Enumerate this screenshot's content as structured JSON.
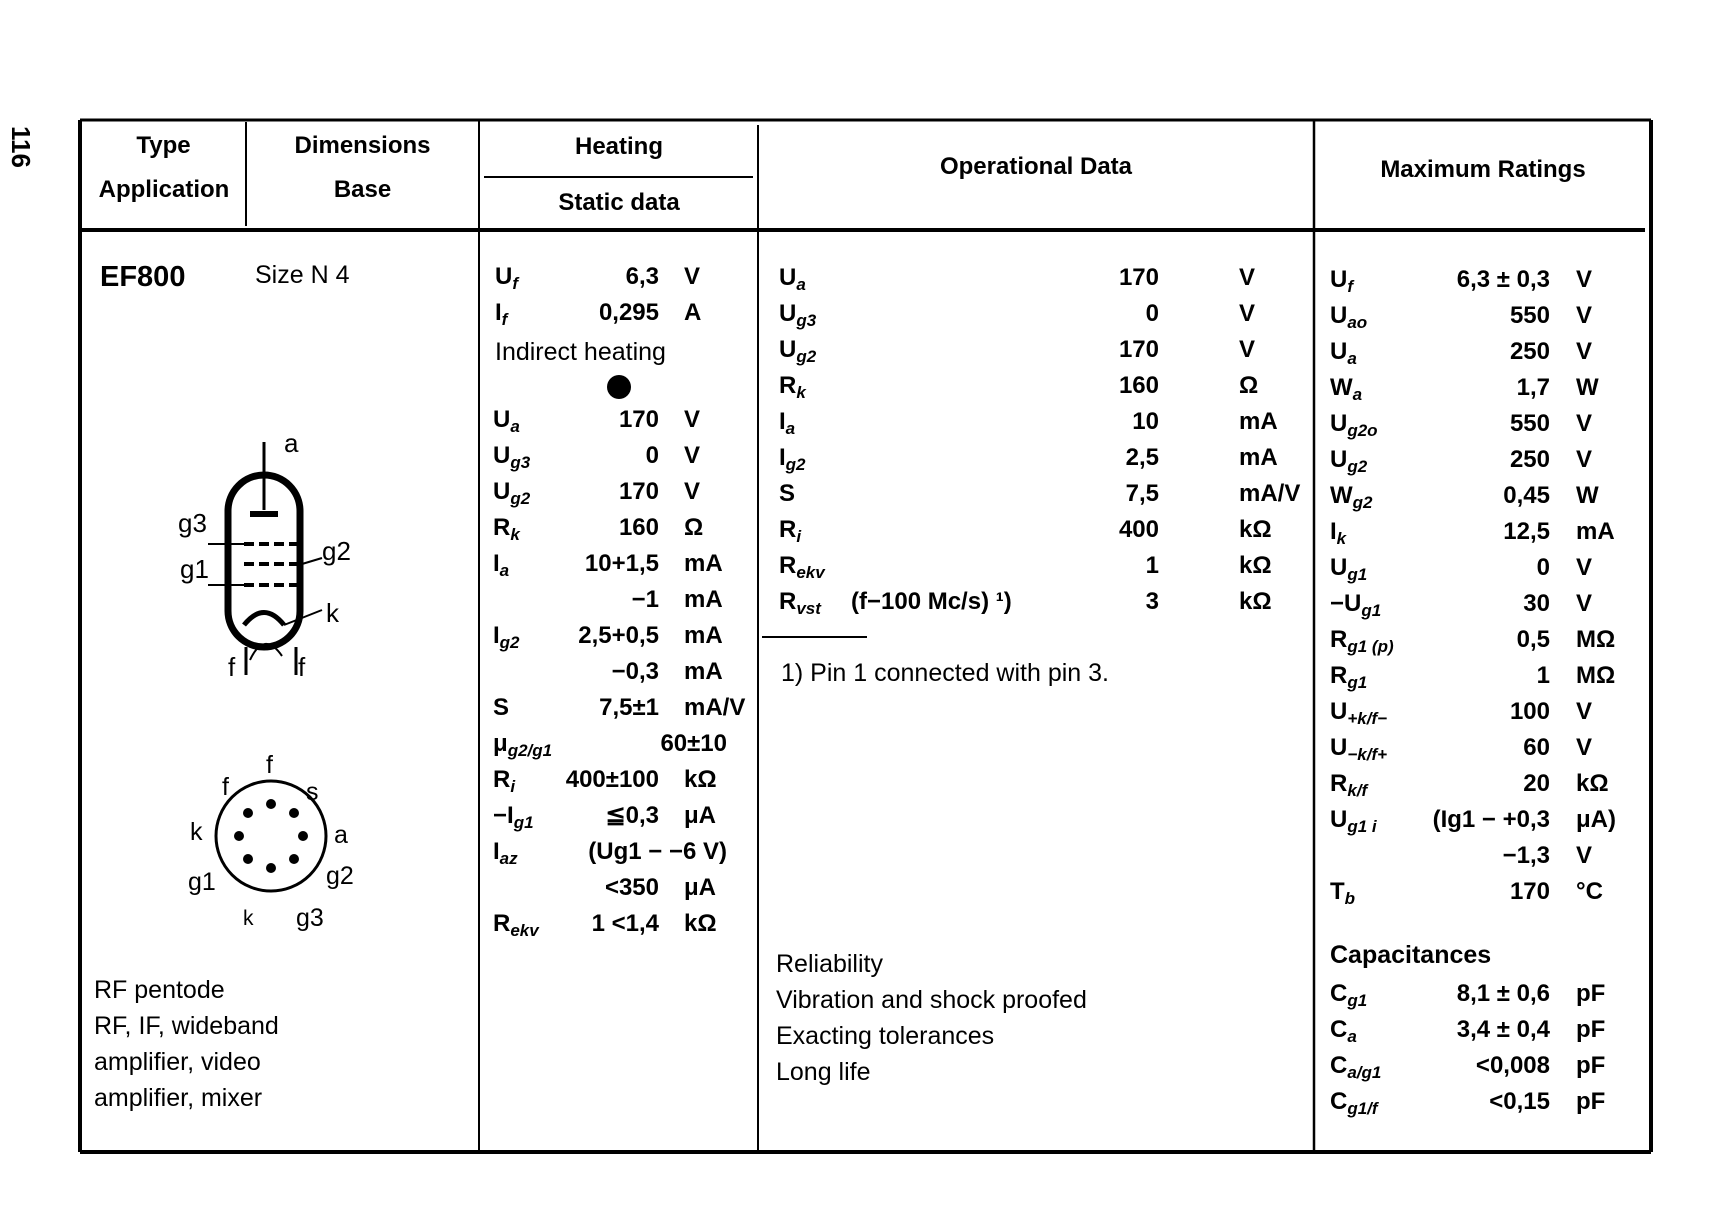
{
  "page_number": "116",
  "headers": {
    "type": "Type",
    "application": "Application",
    "dimensions": "Dimensions",
    "base": "Base",
    "heating": "Heating",
    "static_data": "Static data",
    "operational": "Operational Data",
    "maximum": "Maximum Ratings"
  },
  "tube": {
    "type": "EF800",
    "size": "Size N 4",
    "application": [
      "RF pentode",
      "RF, IF, wideband",
      "amplifier, video",
      "amplifier, mixer"
    ],
    "symbol_labels": {
      "a": "a",
      "g3": "g3",
      "g2": "g2",
      "g1": "g1",
      "k": "k",
      "f1": "f",
      "f2": "f"
    },
    "base_labels": {
      "f1": "f",
      "f2": "f",
      "s": "s",
      "k1": "k",
      "a": "a",
      "g1": "g1",
      "g2": "g2",
      "k2": "k",
      "g3": "g3"
    }
  },
  "heating": {
    "rows": [
      {
        "sym": "U",
        "sub": "f",
        "val": "6,3",
        "unit": "V"
      },
      {
        "sym": "I",
        "sub": "f",
        "val": "0,295",
        "unit": "A"
      }
    ],
    "note": "Indirect heating",
    "dot_icon": "filled-circle"
  },
  "static": {
    "rows": [
      {
        "sym": "U",
        "sub": "a",
        "val": "170",
        "unit": "V"
      },
      {
        "sym": "U",
        "sub": "g3",
        "val": "0",
        "unit": "V"
      },
      {
        "sym": "U",
        "sub": "g2",
        "val": "170",
        "unit": "V"
      },
      {
        "sym": "R",
        "sub": "k",
        "val": "160",
        "unit": "Ω"
      },
      {
        "sym": "I",
        "sub": "a",
        "val": "10+1,5",
        "unit": "mA"
      },
      {
        "sym": "",
        "sub": "",
        "val": "−1",
        "unit": "mA"
      },
      {
        "sym": "I",
        "sub": "g2",
        "val": "2,5+0,5",
        "unit": "mA"
      },
      {
        "sym": "",
        "sub": "",
        "val": "−0,3",
        "unit": "mA"
      },
      {
        "sym": "S",
        "sub": "",
        "val": "7,5±1",
        "unit": "mA/V"
      },
      {
        "sym": "μ",
        "sub": "g2/g1",
        "val": "60±10",
        "unit": ""
      },
      {
        "sym": "R",
        "sub": "i",
        "val": "400±100",
        "unit": "kΩ"
      },
      {
        "sym": "−I",
        "sub": "g1",
        "val": "≦0,3",
        "unit": "μA"
      },
      {
        "sym": "I",
        "sub": "az",
        "val": "(Ug1 − −6 V)",
        "unit": ""
      },
      {
        "sym": "",
        "sub": "",
        "val": "<350",
        "unit": "μA"
      },
      {
        "sym": "R",
        "sub": "ekv",
        "val": "1 <1,4",
        "unit": "kΩ"
      }
    ]
  },
  "operational": {
    "rows": [
      {
        "sym": "U",
        "sub": "a",
        "val": "170",
        "unit": "V"
      },
      {
        "sym": "U",
        "sub": "g3",
        "val": "0",
        "unit": "V"
      },
      {
        "sym": "U",
        "sub": "g2",
        "val": "170",
        "unit": "V"
      },
      {
        "sym": "R",
        "sub": "k",
        "val": "160",
        "unit": "Ω"
      },
      {
        "sym": "I",
        "sub": "a",
        "val": "10",
        "unit": "mA"
      },
      {
        "sym": "I",
        "sub": "g2",
        "val": "2,5",
        "unit": "mA"
      },
      {
        "sym": "S",
        "sub": "",
        "val": "7,5",
        "unit": "mA/V"
      },
      {
        "sym": "R",
        "sub": "i",
        "val": "400",
        "unit": "kΩ"
      },
      {
        "sym": "R",
        "sub": "ekv",
        "val": "1",
        "unit": "kΩ"
      },
      {
        "sym": "R",
        "sub": "vst",
        "val": "3",
        "unit": "kΩ",
        "extra": "(f−100 Mc/s) ¹)"
      }
    ],
    "footnote": "1)  Pin  1  connected  with  pin  3.",
    "reliability": [
      "Reliability",
      "Vibration  and  shock  proofed",
      "Exacting  tolerances",
      "Long  life"
    ]
  },
  "maximum": {
    "rows": [
      {
        "sym": "U",
        "sub": "f",
        "val": "6,3 ± 0,3",
        "unit": "V"
      },
      {
        "sym": "U",
        "sub": "ao",
        "val": "550",
        "unit": "V"
      },
      {
        "sym": "U",
        "sub": "a",
        "val": "250",
        "unit": "V"
      },
      {
        "sym": "W",
        "sub": "a",
        "val": "1,7",
        "unit": "W"
      },
      {
        "sym": "U",
        "sub": "g2o",
        "val": "550",
        "unit": "V"
      },
      {
        "sym": "U",
        "sub": "g2",
        "val": "250",
        "unit": "V"
      },
      {
        "sym": "W",
        "sub": "g2",
        "val": "0,45",
        "unit": "W"
      },
      {
        "sym": "I",
        "sub": "k",
        "val": "12,5",
        "unit": "mA"
      },
      {
        "sym": "U",
        "sub": "g1",
        "val": "0",
        "unit": "V"
      },
      {
        "sym": "−U",
        "sub": "g1",
        "val": "30",
        "unit": "V"
      },
      {
        "sym": "R",
        "sub": "g1 (p)",
        "val": "0,5",
        "unit": "MΩ"
      },
      {
        "sym": "R",
        "sub": "g1",
        "val": "1",
        "unit": "MΩ"
      },
      {
        "sym": "U",
        "sub": "+k/f−",
        "val": "100",
        "unit": "V"
      },
      {
        "sym": "U",
        "sub": "−k/f+",
        "val": "60",
        "unit": "V"
      },
      {
        "sym": "R",
        "sub": "k/f",
        "val": "20",
        "unit": "kΩ"
      },
      {
        "sym": "U",
        "sub": "g1 i",
        "val": "(Ig1 − +0,3",
        "unit": "μA)"
      },
      {
        "sym": "",
        "sub": "",
        "val": "−1,3",
        "unit": "V"
      },
      {
        "sym": "T",
        "sub": "b",
        "val": "170",
        "unit": "°C"
      }
    ],
    "capacitances_title": "Capacitances",
    "capacitances": [
      {
        "sym": "C",
        "sub": "g1",
        "val": "8,1 ± 0,6",
        "unit": "pF"
      },
      {
        "sym": "C",
        "sub": "a",
        "val": "3,4 ± 0,4",
        "unit": "pF"
      },
      {
        "sym": "C",
        "sub": "a/g1",
        "val": "<0,008",
        "unit": "pF"
      },
      {
        "sym": "C",
        "sub": "g1/f",
        "val": "<0,15",
        "unit": "pF"
      }
    ]
  }
}
